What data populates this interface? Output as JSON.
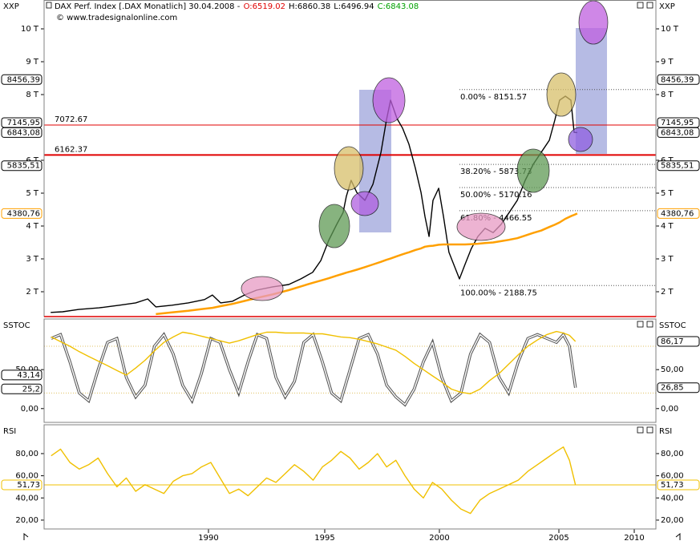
{
  "chart_data": [
    {
      "type": "line",
      "corner_label": "XXP",
      "title": "DAX Perf. Index [.DAX  Monatlich] 30.04.2008 -",
      "quote": [
        {
          "text": "O:6519.02",
          "color": "#e00000"
        },
        {
          "text": "H:6860.38",
          "color": "#000000"
        },
        {
          "text": "L:6496.94",
          "color": "#000000"
        },
        {
          "text": "C:6843.08",
          "color": "#00a000"
        }
      ],
      "source": "© www.tradesignalonline.com",
      "x": [
        1983.28,
        1983.79,
        1984.48,
        1985.34,
        1986.21,
        1986.9,
        1987.41,
        1987.76,
        1988.45,
        1989.14,
        1989.83,
        1990.17,
        1990.52,
        1991.03,
        1991.55,
        1992.07,
        1992.76,
        1993.45,
        1993.97,
        1994.48,
        1994.83,
        1995.17,
        1995.52,
        1995.8,
        1995.94,
        1996.15,
        1996.4,
        1996.75,
        1997.1,
        1997.45,
        1997.69,
        1997.87,
        1998.15,
        1998.39,
        1998.67,
        1998.95,
        1999.2,
        1999.37,
        1999.55,
        1999.72,
        1999.97,
        2000.17,
        2000.4,
        2000.6,
        2000.84,
        2001.07,
        2001.34,
        2001.61,
        2001.91,
        2002.25,
        2002.58,
        2002.92,
        2003.26,
        2003.59,
        2003.93,
        2004.26,
        2004.6,
        2004.83,
        2005.05,
        2005.43,
        2005.8,
        2006.01,
        2006.22
      ],
      "series": [
        {
          "color": "#000000",
          "values": [
            1370,
            1390,
            1460,
            1510,
            1590,
            1660,
            1780,
            1540,
            1590,
            1660,
            1760,
            1900,
            1660,
            1710,
            1900,
            2050,
            2150,
            2220,
            2390,
            2590,
            2950,
            3560,
            4050,
            4410,
            4900,
            5390,
            5020,
            4780,
            5270,
            6240,
            7220,
            7830,
            7270,
            6980,
            6490,
            5760,
            5020,
            4290,
            3680,
            4780,
            5150,
            4290,
            3200,
            2830,
            2390,
            2830,
            3320,
            3680,
            3930,
            3800,
            4050,
            4410,
            4780,
            5390,
            5880,
            6240,
            6610,
            7220,
            7830,
            7950,
            7830,
            6850,
            6843.08
          ]
        },
        {
          "color": "#ffa000",
          "values": [
            null,
            null,
            null,
            null,
            null,
            null,
            null,
            1320,
            1370,
            1420,
            1480,
            1510,
            1560,
            1630,
            1720,
            1810,
            1920,
            2050,
            2160,
            2270,
            2340,
            2410,
            2490,
            2550,
            2580,
            2620,
            2670,
            2750,
            2830,
            2910,
            2970,
            3010,
            3080,
            3140,
            3200,
            3270,
            3320,
            3370,
            3390,
            3400,
            3430,
            3440,
            3440,
            3440,
            3440,
            3440,
            3450,
            3460,
            3480,
            3500,
            3540,
            3580,
            3630,
            3710,
            3790,
            3860,
            3970,
            4040,
            4110,
            4220,
            4300,
            4340,
            4380.76
          ]
        }
      ],
      "xlim": [
        1983,
        2011.4
      ],
      "xticks": [
        1990,
        1995,
        2000,
        2005,
        2010
      ],
      "ylim": [
        1244,
        10878
      ],
      "yticks": [
        {
          "value": 2000,
          "label": "2 T"
        },
        {
          "value": 3000,
          "label": "3 T"
        },
        {
          "value": 4000,
          "label": "4 T"
        },
        {
          "value": 5000,
          "label": "5 T"
        },
        {
          "value": 6000,
          "label": "6 T"
        },
        {
          "value": 8000,
          "label": "8 T"
        },
        {
          "value": 9000,
          "label": "9 T"
        },
        {
          "value": 10000,
          "label": "10 T"
        }
      ],
      "levels": [
        {
          "value": 7072.67,
          "color": "#e00000"
        },
        {
          "value": 6162.37,
          "color": "#e00000"
        }
      ],
      "fib_levels": [
        {
          "value": 8151.57,
          "label": "0.00% - 8151.57"
        },
        {
          "value": 5873.73,
          "label": "38.20% - 5873.73"
        },
        {
          "value": 5170.16,
          "label": "50.00% - 5170.16"
        },
        {
          "value": 4466.55,
          "label": "61.80% - 4466.55"
        },
        {
          "value": 2188.75,
          "label": "100.00% - 2188.75"
        }
      ],
      "markers": [
        {
          "value": 8456.39,
          "label": "8456,39",
          "color": "#000000"
        },
        {
          "value": 7145.95,
          "label": "7145,95",
          "color": "#000000"
        },
        {
          "value": 6843.08,
          "label": "6843,08",
          "color": "#000000"
        },
        {
          "value": 5835.51,
          "label": "5835,51",
          "color": "#000000"
        },
        {
          "value": 4380.76,
          "label": "4380,76",
          "color": "#ffa000"
        }
      ]
    },
    {
      "type": "line",
      "title": "SSTOC",
      "x": [
        1983.3,
        1983.7,
        1984.1,
        1984.5,
        1984.9,
        1985.3,
        1985.7,
        1986.1,
        1986.5,
        1986.9,
        1987.3,
        1987.7,
        1988.1,
        1988.5,
        1988.9,
        1989.3,
        1989.7,
        1990.1,
        1990.5,
        1990.9,
        1991.3,
        1991.7,
        1992.1,
        1992.5,
        1992.9,
        1993.3,
        1993.7,
        1994.1,
        1994.5,
        1994.9,
        1995.3,
        1995.7,
        1996.1,
        1996.5,
        1996.9,
        1997.3,
        1997.7,
        1998.1,
        1998.5,
        1998.9,
        1999.3,
        1999.7,
        2000.1,
        2000.5,
        2000.9,
        2001.3,
        2001.7,
        2002.1,
        2002.5,
        2002.9,
        2003.3,
        2003.7,
        2004.1,
        2004.5,
        2004.9,
        2005.3,
        2005.7,
        2006.1
      ],
      "series": [
        {
          "color": "#ffffff",
          "values": [
            90,
            95,
            60,
            20,
            10,
            50,
            85,
            90,
            40,
            15,
            30,
            80,
            95,
            70,
            30,
            10,
            45,
            90,
            85,
            50,
            20,
            60,
            95,
            90,
            40,
            15,
            35,
            85,
            95,
            60,
            20,
            10,
            50,
            90,
            95,
            70,
            30,
            15,
            5,
            25,
            60,
            85,
            40,
            10,
            20,
            70,
            95,
            85,
            40,
            20,
            60,
            90,
            95,
            90,
            85,
            95,
            80,
            26.85
          ]
        },
        {
          "color": "#f0c000",
          "values": [
            92,
            86,
            80,
            73,
            67,
            61,
            55,
            49,
            43,
            52,
            62,
            74,
            85,
            92,
            98,
            96,
            93,
            90,
            87,
            84,
            87,
            91,
            95,
            98,
            98,
            97,
            97,
            97,
            96,
            96,
            94,
            92,
            91,
            89,
            86,
            83,
            79,
            75,
            67,
            58,
            50,
            42,
            34,
            25,
            21,
            19,
            25,
            36,
            45,
            57,
            69,
            80,
            88,
            95,
            99,
            97,
            94,
            86.17
          ]
        }
      ],
      "ylim": [
        -17.7,
        115
      ],
      "yticks": [
        {
          "value": 0,
          "label": "0,00"
        },
        {
          "value": 50,
          "label": "50,00"
        }
      ],
      "guides": [
        80,
        20
      ],
      "markers_left": [
        {
          "value": 43.14,
          "label": "43,14"
        },
        {
          "value": 25.2,
          "label": "25,2"
        }
      ],
      "markers_right": [
        {
          "value": 86.17,
          "label": "86,17"
        },
        {
          "value": 26.85,
          "label": "26,85"
        }
      ]
    },
    {
      "type": "line",
      "title": "RSI",
      "x": [
        1983.3,
        1983.7,
        1984.1,
        1984.5,
        1984.9,
        1985.3,
        1985.7,
        1986.1,
        1986.5,
        1986.9,
        1987.3,
        1987.7,
        1988.1,
        1988.5,
        1988.9,
        1989.3,
        1989.7,
        1990.1,
        1990.5,
        1990.9,
        1991.3,
        1991.7,
        1992.1,
        1992.5,
        1992.9,
        1993.3,
        1993.7,
        1994.1,
        1994.5,
        1994.9,
        1995.3,
        1995.7,
        1996.1,
        1996.5,
        1996.9,
        1997.3,
        1997.7,
        1998.1,
        1998.5,
        1998.9,
        1999.3,
        1999.7,
        2000.1,
        2000.5,
        2000.9,
        2001.3,
        2001.7,
        2002.1,
        2002.5,
        2002.9,
        2003.3,
        2003.7,
        2004.1,
        2004.5,
        2004.9,
        2005.3,
        2005.7,
        2006.1
      ],
      "series": [
        {
          "color": "#f0c000",
          "values": [
            78,
            84,
            72,
            66,
            70,
            76,
            62,
            50,
            58,
            46,
            52,
            48,
            44,
            55,
            60,
            62,
            68,
            72,
            58,
            44,
            48,
            42,
            50,
            58,
            54,
            62,
            70,
            64,
            56,
            68,
            74,
            82,
            76,
            66,
            72,
            80,
            68,
            74,
            60,
            48,
            40,
            54,
            48,
            38,
            30,
            26,
            38,
            44,
            48,
            52,
            56,
            64,
            70,
            76,
            82,
            86,
            74,
            51.73
          ]
        }
      ],
      "ylim": [
        12,
        106
      ],
      "yticks": [
        {
          "value": 20,
          "label": "20,00"
        },
        {
          "value": 40,
          "label": "40,00"
        },
        {
          "value": 60,
          "label": "60,00"
        },
        {
          "value": 80,
          "label": "80,00"
        }
      ],
      "level": {
        "value": 51.73,
        "label": "51,73"
      }
    }
  ]
}
